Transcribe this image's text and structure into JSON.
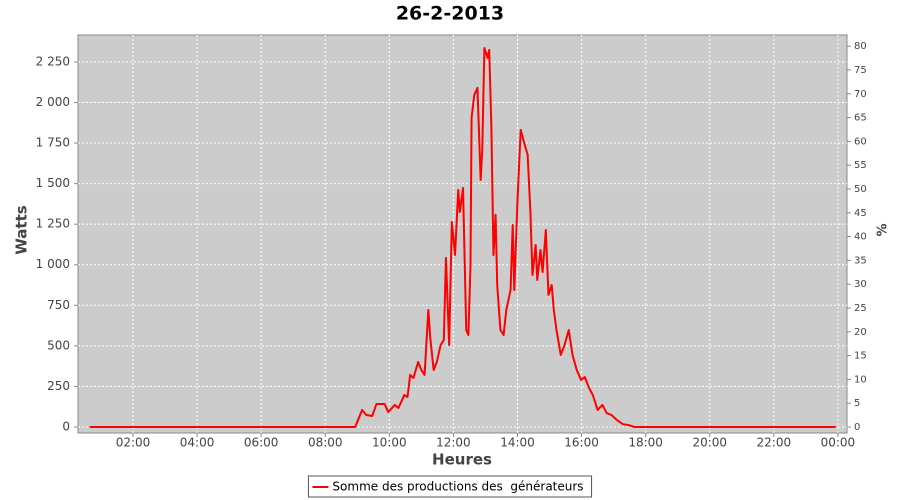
{
  "chart_data": {
    "type": "line",
    "title": "26-2-2013",
    "x_label": "Heures",
    "y_label": "Watts",
    "y2_label": "%",
    "x": [
      39,
      300,
      480,
      536,
      549,
      557,
      568,
      576,
      591,
      598,
      610,
      617,
      628,
      634,
      639,
      645,
      654,
      660,
      666,
      673,
      677,
      683,
      689,
      696,
      702,
      706,
      712,
      717,
      723,
      729,
      732,
      738,
      744,
      748,
      752,
      754,
      759,
      765,
      771,
      774,
      778,
      784,
      787,
      791,
      795,
      799,
      802,
      808,
      814,
      819,
      827,
      831,
      834,
      840,
      846,
      851,
      859,
      864,
      868,
      874,
      877,
      883,
      887,
      893,
      898,
      904,
      908,
      913,
      921,
      928,
      936,
      943,
      951,
      959,
      966,
      974,
      981,
      990,
      999,
      1007,
      1016,
      1026,
      1037,
      1048,
      1059,
      1183,
      1436
    ],
    "series": [
      {
        "name": "Somme des productions des  générateurs",
        "color": "#ff0000",
        "values": [
          0,
          0,
          0,
          0,
          105,
          74,
          68,
          142,
          142,
          92,
          136,
          117,
          197,
          185,
          321,
          302,
          401,
          351,
          321,
          721,
          536,
          351,
          401,
          505,
          536,
          1042,
          505,
          1264,
          1060,
          1461,
          1325,
          1473,
          598,
          567,
          999,
          1905,
          2046,
          2090,
          1523,
          1707,
          2336,
          2275,
          2324,
          1862,
          1060,
          1307,
          875,
          598,
          567,
          721,
          844,
          1245,
          844,
          1399,
          1831,
          1769,
          1677,
          1338,
          937,
          1122,
          906,
          1091,
          955,
          1214,
          814,
          875,
          721,
          598,
          444,
          505,
          598,
          444,
          351,
          290,
          308,
          240,
          197,
          105,
          136,
          86,
          74,
          43,
          18,
          12,
          0,
          0,
          0
        ]
      }
    ],
    "xlim": [
      17,
      1457
    ],
    "xticks": [
      {
        "value": 120,
        "label": "02:00"
      },
      {
        "value": 240,
        "label": "04:00"
      },
      {
        "value": 360,
        "label": "06:00"
      },
      {
        "value": 480,
        "label": "08:00"
      },
      {
        "value": 600,
        "label": "10:00"
      },
      {
        "value": 720,
        "label": "12:00"
      },
      {
        "value": 840,
        "label": "14:00"
      },
      {
        "value": 960,
        "label": "16:00"
      },
      {
        "value": 1080,
        "label": "18:00"
      },
      {
        "value": 1200,
        "label": "20:00"
      },
      {
        "value": 1320,
        "label": "22:00"
      },
      {
        "value": 1440,
        "label": "00:00"
      }
    ],
    "ylim": [
      -37,
      2416
    ],
    "yticks": [
      0,
      250,
      500,
      750,
      {
        "value": 1000,
        "label": "1 000"
      },
      {
        "value": 1250,
        "label": "1 250"
      },
      {
        "value": 1500,
        "label": "1 500"
      },
      {
        "value": 1750,
        "label": "1 750"
      },
      {
        "value": 2000,
        "label": "2 000"
      },
      {
        "value": 2250,
        "label": "2 250"
      }
    ],
    "y2lim": [
      -1.26,
      82.35
    ],
    "y2ticks": [
      0,
      5,
      10,
      15,
      20,
      25,
      30,
      35,
      40,
      45,
      50,
      55,
      60,
      65,
      70,
      75,
      80
    ],
    "grid": true,
    "legend": "bottom"
  }
}
